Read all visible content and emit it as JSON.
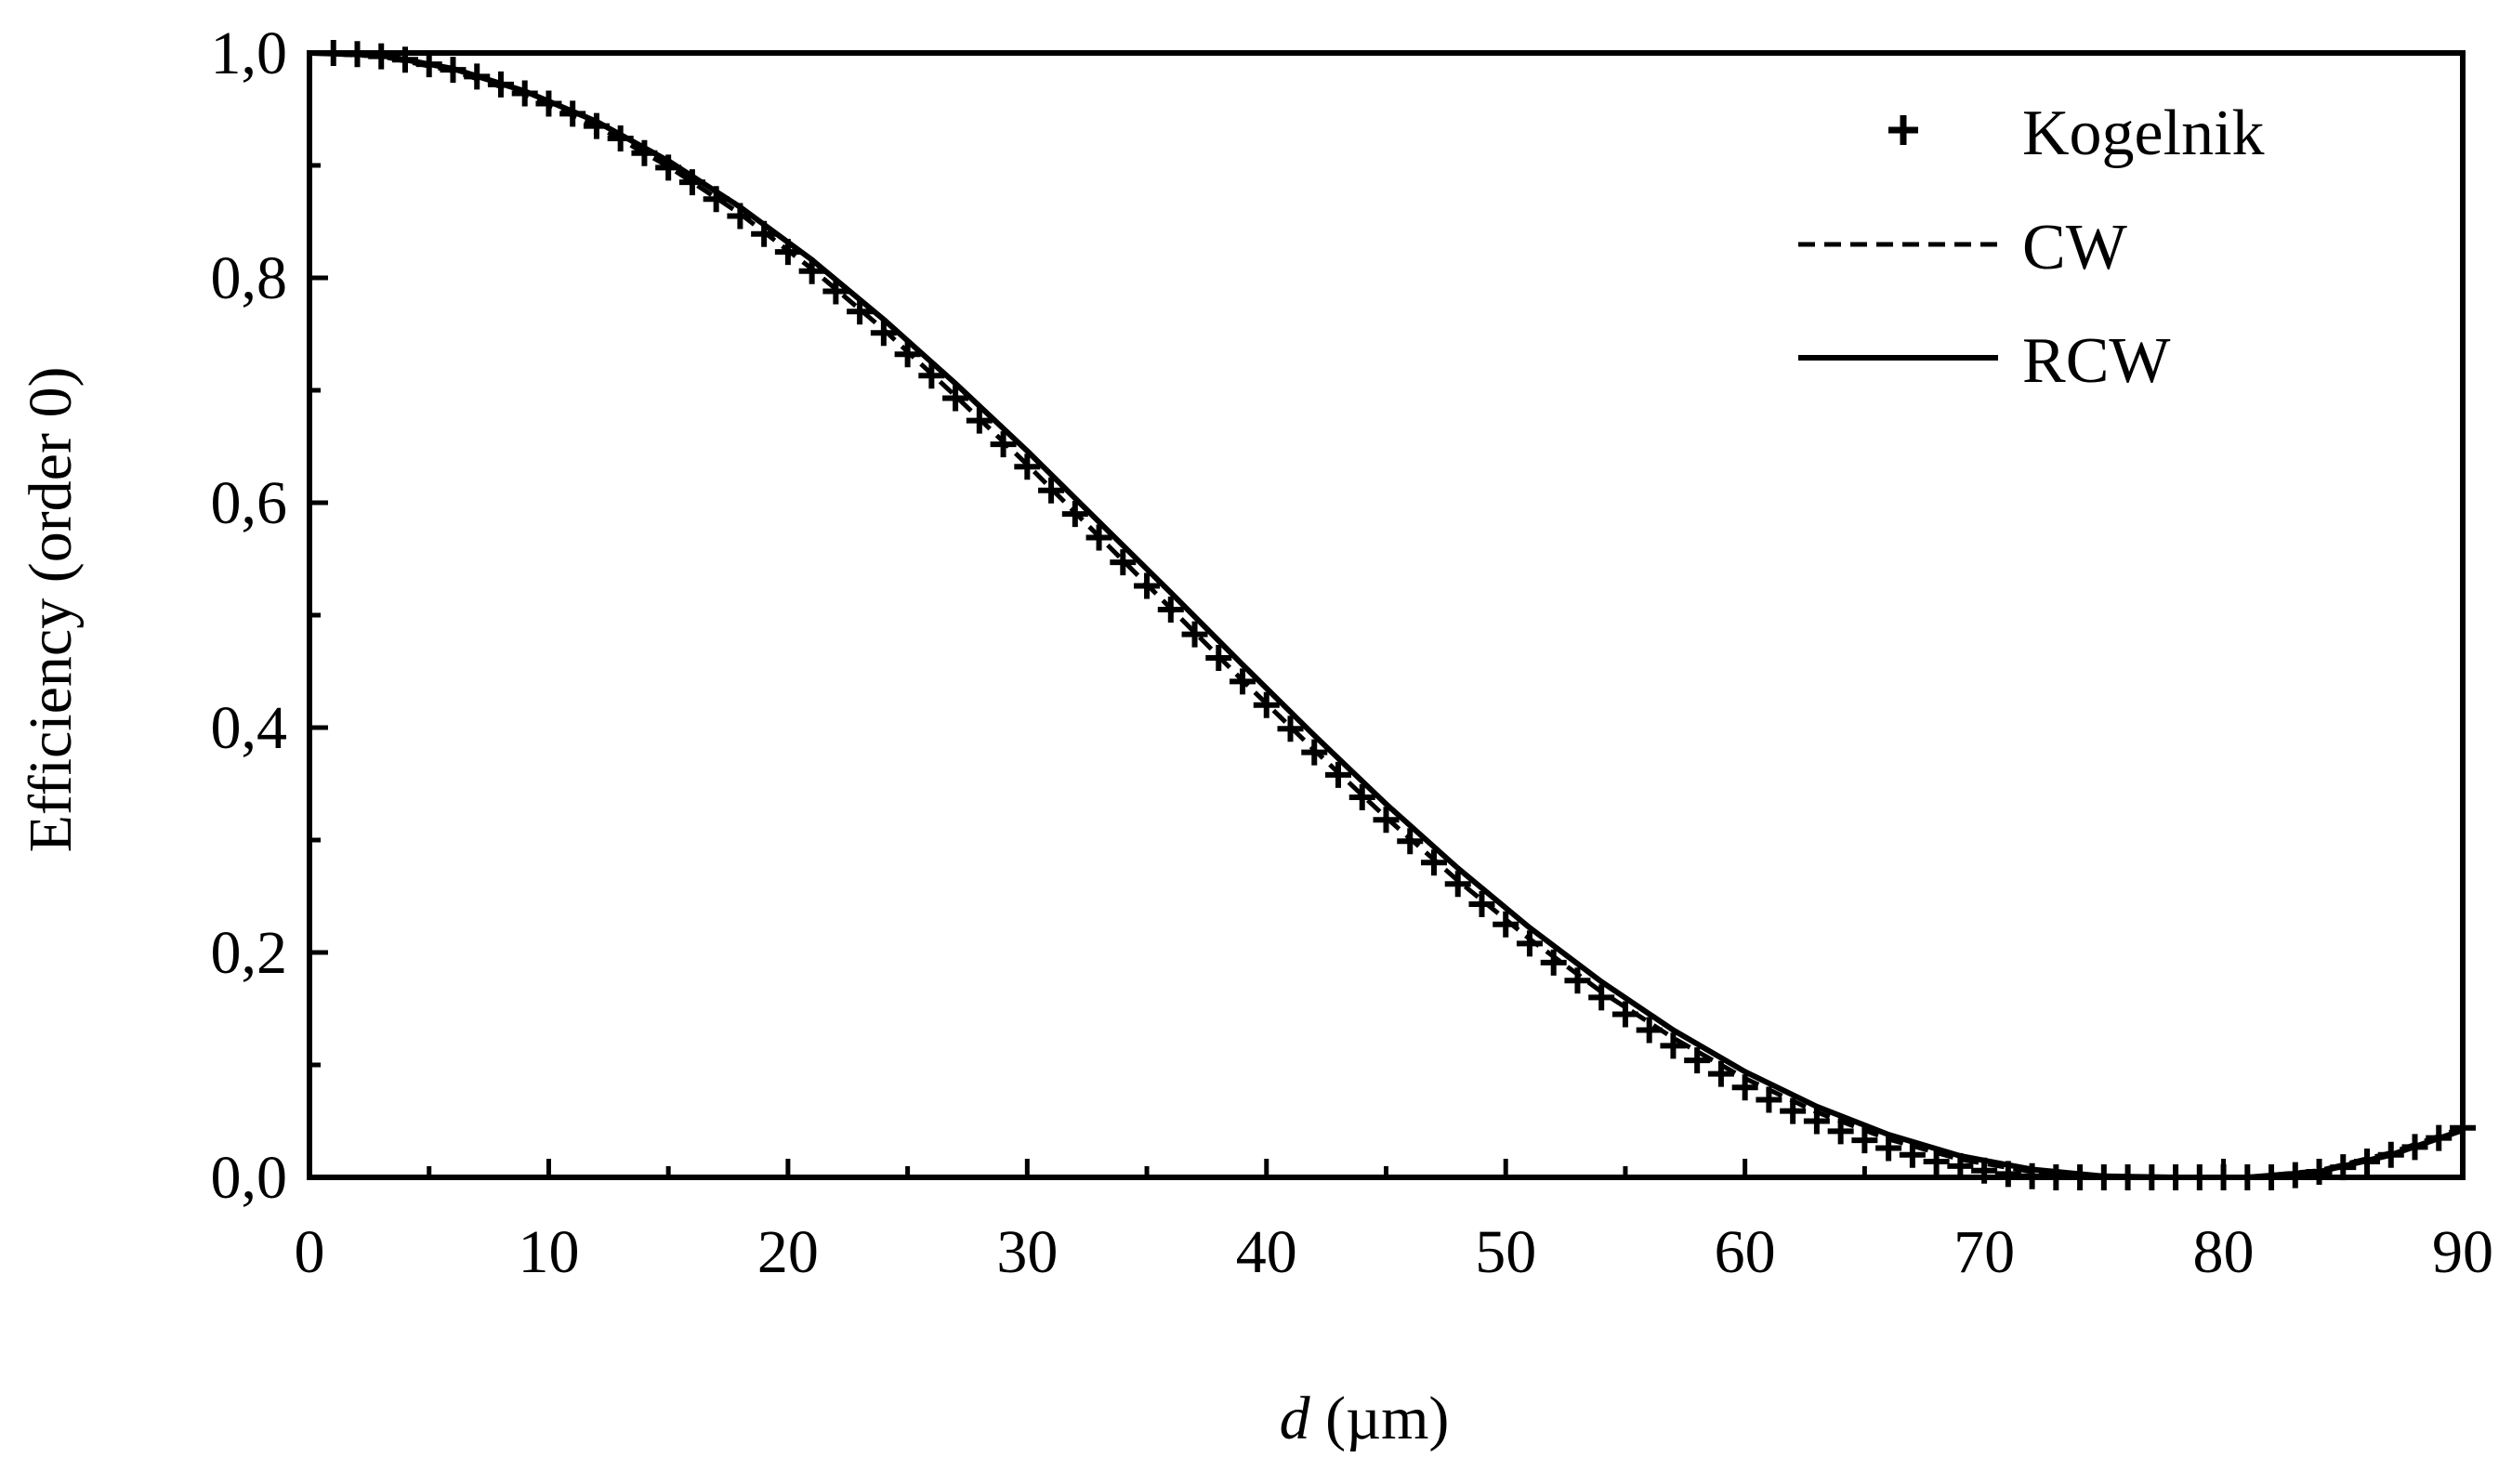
{
  "chart_data": {
    "type": "line",
    "title": "",
    "xlabel": {
      "var": "d",
      "unit": " (µm)"
    },
    "ylabel": "Efficiency (order 0)",
    "xlim": [
      0,
      90
    ],
    "ylim": [
      0,
      1.0
    ],
    "x_ticks": [
      "0",
      "10",
      "20",
      "30",
      "40",
      "50",
      "60",
      "70",
      "80",
      "90"
    ],
    "y_ticks": [
      "0,0",
      "0,2",
      "0,4",
      "0,6",
      "0,8",
      "1,0"
    ],
    "grid": false,
    "legend_position": "top-right",
    "series": [
      {
        "name": "Kogelnik",
        "style": "markers-plus",
        "x": [
          1,
          2,
          3,
          4,
          5,
          6,
          7,
          8,
          9,
          10,
          11,
          12,
          13,
          14,
          15,
          16,
          17,
          18,
          19,
          20,
          21,
          22,
          23,
          24,
          25,
          26,
          27,
          28,
          29,
          30,
          31,
          32,
          33,
          34,
          35,
          36,
          37,
          38,
          39,
          40,
          41,
          42,
          43,
          44,
          45,
          46,
          47,
          48,
          49,
          50,
          51,
          52,
          53,
          54,
          55,
          56,
          57,
          58,
          59,
          60,
          61,
          62,
          63,
          64,
          65,
          66,
          67,
          68,
          69,
          70,
          71,
          72,
          73,
          74,
          75,
          76,
          77,
          78,
          79,
          80,
          81,
          82,
          83,
          84,
          85,
          86,
          87,
          88,
          89,
          90
        ],
        "values": [
          1.0,
          0.999,
          0.997,
          0.994,
          0.99,
          0.985,
          0.979,
          0.972,
          0.964,
          0.955,
          0.946,
          0.935,
          0.924,
          0.911,
          0.898,
          0.885,
          0.87,
          0.855,
          0.839,
          0.823,
          0.806,
          0.788,
          0.77,
          0.751,
          0.732,
          0.713,
          0.693,
          0.673,
          0.652,
          0.632,
          0.611,
          0.59,
          0.569,
          0.547,
          0.526,
          0.505,
          0.483,
          0.462,
          0.441,
          0.42,
          0.399,
          0.378,
          0.358,
          0.338,
          0.318,
          0.299,
          0.28,
          0.261,
          0.243,
          0.225,
          0.208,
          0.191,
          0.175,
          0.16,
          0.145,
          0.131,
          0.117,
          0.104,
          0.092,
          0.08,
          0.069,
          0.059,
          0.05,
          0.041,
          0.033,
          0.026,
          0.02,
          0.014,
          0.01,
          0.006,
          0.003,
          0.001,
          0.0,
          0.0,
          0.0,
          0.0,
          0.0,
          0.0,
          0.0,
          0.0,
          0.0,
          0.0,
          0.002,
          0.005,
          0.009,
          0.014,
          0.02,
          0.027,
          0.035,
          0.044
        ]
      },
      {
        "name": "CW",
        "style": "dashed",
        "x": [
          0,
          3,
          6,
          9,
          12,
          15,
          18,
          21,
          24,
          27,
          30,
          33,
          36,
          39,
          42,
          45,
          48,
          51,
          54,
          57,
          60,
          63,
          66,
          69,
          72,
          75,
          78,
          81,
          84,
          87,
          90
        ],
        "values": [
          1.0,
          0.997,
          0.984,
          0.963,
          0.935,
          0.899,
          0.857,
          0.808,
          0.754,
          0.695,
          0.634,
          0.57,
          0.506,
          0.442,
          0.38,
          0.32,
          0.264,
          0.212,
          0.165,
          0.124,
          0.088,
          0.058,
          0.034,
          0.016,
          0.005,
          0.0,
          0.0,
          0.0,
          0.006,
          0.022,
          0.044
        ]
      },
      {
        "name": "RCW",
        "style": "solid",
        "x": [
          0,
          3,
          6,
          9,
          12,
          15,
          18,
          21,
          24,
          27,
          30,
          33,
          36,
          39,
          42,
          45,
          48,
          51,
          54,
          57,
          60,
          63,
          66,
          69,
          72,
          75,
          78,
          81,
          84,
          87,
          90
        ],
        "values": [
          1.0,
          0.998,
          0.986,
          0.966,
          0.939,
          0.904,
          0.863,
          0.816,
          0.763,
          0.706,
          0.646,
          0.583,
          0.52,
          0.456,
          0.393,
          0.332,
          0.275,
          0.222,
          0.174,
          0.131,
          0.094,
          0.063,
          0.038,
          0.019,
          0.007,
          0.001,
          0.0,
          0.0,
          0.005,
          0.02,
          0.042
        ]
      }
    ]
  }
}
